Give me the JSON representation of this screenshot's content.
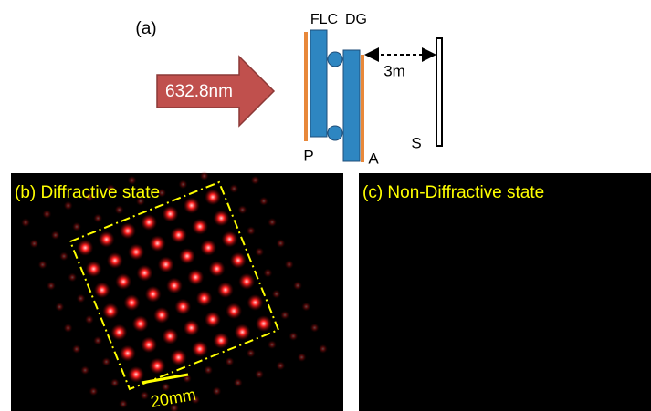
{
  "panel_a": {
    "label": "(a)",
    "wavelength": "632.8nm",
    "flc": "FLC",
    "dg": "DG",
    "distance": "3m",
    "polarizer": "P",
    "analyzer": "A",
    "screen": "S"
  },
  "panel_b": {
    "title": "(b) Diffractive state",
    "scale": "20mm"
  },
  "panel_c": {
    "title": "(c) Non-Diffractive state"
  }
}
